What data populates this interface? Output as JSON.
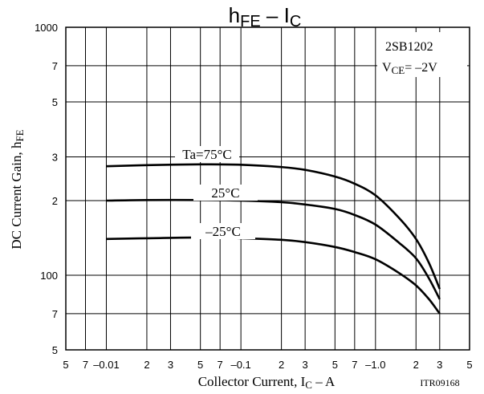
{
  "chart_data": {
    "type": "line",
    "title_main": "h",
    "title_main_sub": "FE",
    "title_sep": " – ",
    "title_right": "I",
    "title_right_sub": "C",
    "xlabel_main": "Collector Current, I",
    "xlabel_sub": "C",
    "xlabel_unit": " – A",
    "ylabel_main": "DC Current Gain, h",
    "ylabel_sub": "FE",
    "part_number": "2SB1202",
    "condition_main": "V",
    "condition_sub": "CE",
    "condition_value": "= –2V",
    "doc_code": "ITR09168",
    "x_scale": "log",
    "y_scale": "log",
    "xlim": [
      -0.005,
      -5
    ],
    "ylim": [
      50,
      1000
    ],
    "grid": true,
    "x_tick_labels": [
      {
        "v": -0.005,
        "t": "5"
      },
      {
        "v": -0.007,
        "t": "7"
      },
      {
        "v": -0.01,
        "t": "–0.01"
      },
      {
        "v": -0.02,
        "t": "2"
      },
      {
        "v": -0.03,
        "t": "3"
      },
      {
        "v": -0.05,
        "t": "5"
      },
      {
        "v": -0.07,
        "t": "7"
      },
      {
        "v": -0.1,
        "t": "–0.1"
      },
      {
        "v": -0.2,
        "t": "2"
      },
      {
        "v": -0.3,
        "t": "3"
      },
      {
        "v": -0.5,
        "t": "5"
      },
      {
        "v": -0.7,
        "t": "7"
      },
      {
        "v": -1.0,
        "t": "–1.0"
      },
      {
        "v": -2,
        "t": "2"
      },
      {
        "v": -3,
        "t": "3"
      },
      {
        "v": -5,
        "t": "5"
      }
    ],
    "y_tick_labels": [
      {
        "v": 50,
        "t": "5"
      },
      {
        "v": 70,
        "t": "7"
      },
      {
        "v": 100,
        "t": "100"
      },
      {
        "v": 200,
        "t": "2"
      },
      {
        "v": 300,
        "t": "3"
      },
      {
        "v": 500,
        "t": "5"
      },
      {
        "v": 700,
        "t": "7"
      },
      {
        "v": 1000,
        "t": "1000"
      }
    ],
    "series": [
      {
        "name": "Ta=75°C",
        "x": [
          -0.01,
          -0.02,
          -0.05,
          -0.1,
          -0.2,
          -0.3,
          -0.5,
          -0.7,
          -1.0,
          -1.5,
          -2.0,
          -2.5,
          -3.0
        ],
        "y": [
          275,
          278,
          280,
          279,
          273,
          266,
          250,
          234,
          210,
          170,
          140,
          112,
          88
        ]
      },
      {
        "name": "25°C",
        "x": [
          -0.01,
          -0.02,
          -0.05,
          -0.1,
          -0.2,
          -0.3,
          -0.5,
          -0.7,
          -1.0,
          -1.5,
          -2.0,
          -2.5,
          -3.0
        ],
        "y": [
          200,
          201,
          201,
          200,
          197,
          193,
          185,
          175,
          160,
          135,
          117,
          97,
          80
        ]
      },
      {
        "name": "–25°C",
        "x": [
          -0.01,
          -0.02,
          -0.05,
          -0.1,
          -0.2,
          -0.3,
          -0.5,
          -0.7,
          -1.0,
          -1.5,
          -2.0,
          -2.5,
          -3.0
        ],
        "y": [
          140,
          141,
          142,
          141,
          139,
          136,
          130,
          124,
          116,
          102,
          91,
          80,
          70
        ]
      }
    ]
  }
}
